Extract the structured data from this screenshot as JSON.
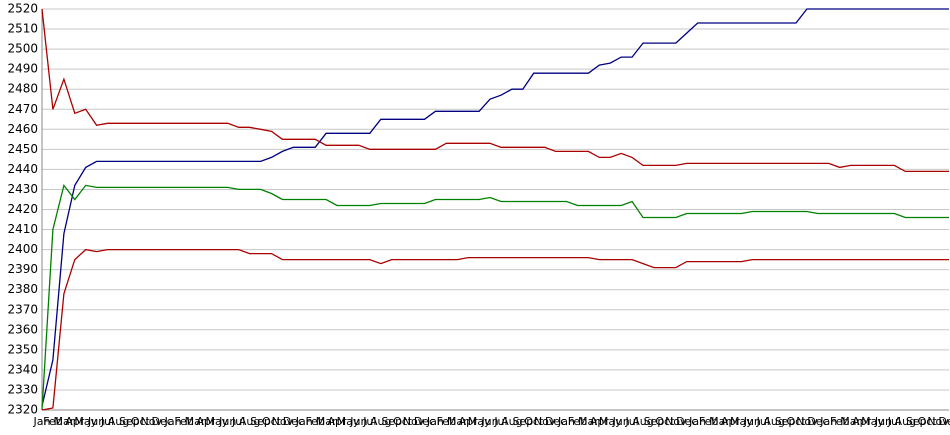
{
  "chart_data": {
    "type": "line",
    "categories": [
      "Jan",
      "Feb",
      "Mar",
      "Apr",
      "May",
      "Jun",
      "Jul",
      "Aug",
      "Sep",
      "Oct",
      "Nov",
      "Dec",
      "Jan",
      "Feb",
      "Mar",
      "Apr",
      "May",
      "Jun",
      "Jul",
      "Aug",
      "Sep",
      "Oct",
      "Nov",
      "Dec",
      "Jan",
      "Feb",
      "Mar",
      "Apr",
      "May",
      "Jun",
      "Jul",
      "Aug",
      "Sep",
      "Oct",
      "Nov",
      "Dec",
      "Jan",
      "Feb",
      "Mar",
      "Apr",
      "May",
      "Jun",
      "Jul",
      "Aug",
      "Sep",
      "Oct",
      "Nov",
      "Dec",
      "Jan",
      "Feb",
      "Mar",
      "Apr",
      "May",
      "Jun",
      "Jul",
      "Aug",
      "Sep",
      "Oct",
      "Nov",
      "Dec",
      "Jan",
      "Feb",
      "Mar",
      "Apr",
      "May",
      "Jun",
      "Jul",
      "Aug",
      "Sep",
      "Oct",
      "Nov",
      "Dec",
      "Jan",
      "Feb",
      "Mar",
      "Apr",
      "May",
      "Jun",
      "Jul",
      "Aug",
      "Sep",
      "Oct",
      "Nov",
      "Dec"
    ],
    "series": [
      {
        "color": "#000080",
        "values": [
          2322,
          2345,
          2408,
          2432,
          2441,
          2444,
          2444,
          2444,
          2444,
          2444,
          2444,
          2444,
          2444,
          2444,
          2444,
          2444,
          2444,
          2444,
          2444,
          2444,
          2444,
          2446,
          2449,
          2451,
          2451,
          2451,
          2458,
          2458,
          2458,
          2458,
          2458,
          2465,
          2465,
          2465,
          2465,
          2465,
          2469,
          2469,
          2469,
          2469,
          2469,
          2475,
          2477,
          2480,
          2480,
          2488,
          2488,
          2488,
          2488,
          2488,
          2488,
          2492,
          2493,
          2496,
          2496,
          2503,
          2503,
          2503,
          2503,
          2508,
          2513,
          2513,
          2513,
          2513,
          2513,
          2513,
          2513,
          2513,
          2513,
          2513,
          2520,
          2520,
          2520,
          2520,
          2520,
          2520,
          2520,
          2520,
          2520,
          2520,
          2520,
          2520,
          2520,
          2520
        ]
      },
      {
        "color": "#aa0000",
        "values": [
          2520,
          2470,
          2485,
          2468,
          2470,
          2462,
          2463,
          2463,
          2463,
          2463,
          2463,
          2463,
          2463,
          2463,
          2463,
          2463,
          2463,
          2463,
          2461,
          2461,
          2460,
          2459,
          2455,
          2455,
          2455,
          2455,
          2452,
          2452,
          2452,
          2452,
          2450,
          2450,
          2450,
          2450,
          2450,
          2450,
          2450,
          2453,
          2453,
          2453,
          2453,
          2453,
          2451,
          2451,
          2451,
          2451,
          2451,
          2449,
          2449,
          2449,
          2449,
          2446,
          2446,
          2448,
          2446,
          2442,
          2442,
          2442,
          2442,
          2443,
          2443,
          2443,
          2443,
          2443,
          2443,
          2443,
          2443,
          2443,
          2443,
          2443,
          2443,
          2443,
          2443,
          2441,
          2442,
          2442,
          2442,
          2442,
          2442,
          2439,
          2439,
          2439,
          2439,
          2439
        ]
      },
      {
        "color": "#008000",
        "values": [
          2320,
          2410,
          2432,
          2425,
          2432,
          2431,
          2431,
          2431,
          2431,
          2431,
          2431,
          2431,
          2431,
          2431,
          2431,
          2431,
          2431,
          2431,
          2430,
          2430,
          2430,
          2428,
          2425,
          2425,
          2425,
          2425,
          2425,
          2422,
          2422,
          2422,
          2422,
          2423,
          2423,
          2423,
          2423,
          2423,
          2425,
          2425,
          2425,
          2425,
          2425,
          2426,
          2424,
          2424,
          2424,
          2424,
          2424,
          2424,
          2424,
          2422,
          2422,
          2422,
          2422,
          2422,
          2424,
          2416,
          2416,
          2416,
          2416,
          2418,
          2418,
          2418,
          2418,
          2418,
          2418,
          2419,
          2419,
          2419,
          2419,
          2419,
          2419,
          2418,
          2418,
          2418,
          2418,
          2418,
          2418,
          2418,
          2418,
          2416,
          2416,
          2416,
          2416,
          2416
        ]
      },
      {
        "color": "#aa0000",
        "values": [
          2320,
          2321,
          2378,
          2395,
          2400,
          2399,
          2400,
          2400,
          2400,
          2400,
          2400,
          2400,
          2400,
          2400,
          2400,
          2400,
          2400,
          2400,
          2400,
          2398,
          2398,
          2398,
          2395,
          2395,
          2395,
          2395,
          2395,
          2395,
          2395,
          2395,
          2395,
          2393,
          2395,
          2395,
          2395,
          2395,
          2395,
          2395,
          2395,
          2396,
          2396,
          2396,
          2396,
          2396,
          2396,
          2396,
          2396,
          2396,
          2396,
          2396,
          2396,
          2395,
          2395,
          2395,
          2395,
          2393,
          2391,
          2391,
          2391,
          2394,
          2394,
          2394,
          2394,
          2394,
          2394,
          2395,
          2395,
          2395,
          2395,
          2395,
          2395,
          2395,
          2395,
          2395,
          2395,
          2395,
          2395,
          2395,
          2395,
          2395,
          2395,
          2395,
          2395,
          2395
        ]
      }
    ],
    "ylim": [
      2320,
      2520
    ],
    "yticks": [
      2320,
      2330,
      2340,
      2350,
      2360,
      2370,
      2380,
      2390,
      2400,
      2410,
      2420,
      2430,
      2440,
      2450,
      2460,
      2470,
      2480,
      2490,
      2500,
      2510,
      2520
    ],
    "grid": true
  }
}
